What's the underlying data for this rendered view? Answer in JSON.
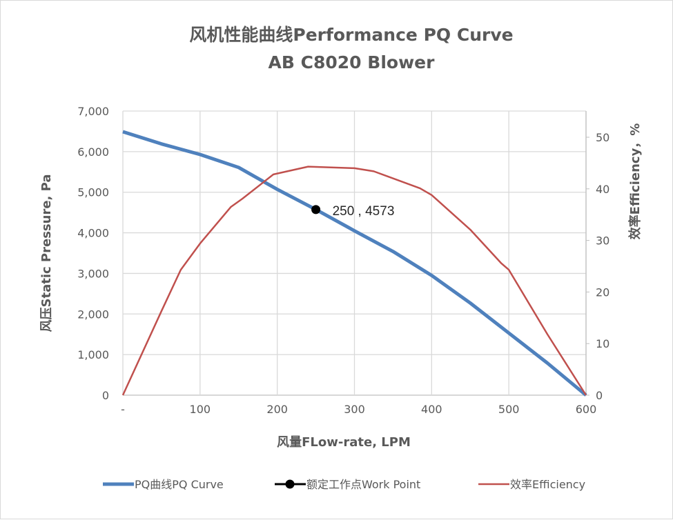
{
  "chart_data": {
    "type": "line",
    "title": "风机性能曲线Performance PQ Curve",
    "subtitle": "AB C8020 Blower",
    "xlabel": "风量FLow-rate, LPM",
    "ylabel": "风压Static Pressure, Pa",
    "y2label": "效率Efficiency，%",
    "xlim": [
      0,
      600
    ],
    "ylim": [
      0,
      7000
    ],
    "y2lim": [
      0,
      55
    ],
    "x_ticks": [
      "-",
      "100",
      "200",
      "300",
      "400",
      "500",
      "600"
    ],
    "y_ticks": [
      "0",
      "1,000",
      "2,000",
      "3,000",
      "4,000",
      "5,000",
      "6,000",
      "7,000"
    ],
    "y2_ticks": [
      "0",
      "10",
      "20",
      "30",
      "40",
      "50"
    ],
    "grid": true,
    "legend_position": "bottom",
    "series": [
      {
        "name": "PQ曲线PQ Curve",
        "axis": "left",
        "color": "#4f81bd",
        "x": [
          0,
          50,
          100,
          150,
          200,
          250,
          300,
          350,
          400,
          450,
          500,
          550,
          600
        ],
        "y": [
          6490,
          6190,
          5930,
          5610,
          5070,
          4573,
          4050,
          3540,
          2950,
          2270,
          1530,
          790,
          0
        ]
      },
      {
        "name": "额定工作点Work Point",
        "axis": "left",
        "color": "#000000",
        "marker": "circle",
        "x": [
          250
        ],
        "y": [
          4573
        ],
        "label": "250 , 4573"
      },
      {
        "name": "效率Efficiency",
        "axis": "right",
        "color": "#c0504d",
        "x": [
          0,
          50,
          75,
          100,
          140,
          155,
          195,
          240,
          300,
          325,
          385,
          400,
          450,
          490,
          500,
          550,
          600
        ],
        "y": [
          0,
          16.3,
          24.3,
          29.4,
          36.5,
          38.1,
          42.8,
          44.3,
          44.0,
          43.4,
          40.1,
          38.8,
          32.1,
          25.6,
          24.3,
          11.8,
          0
        ]
      }
    ]
  }
}
